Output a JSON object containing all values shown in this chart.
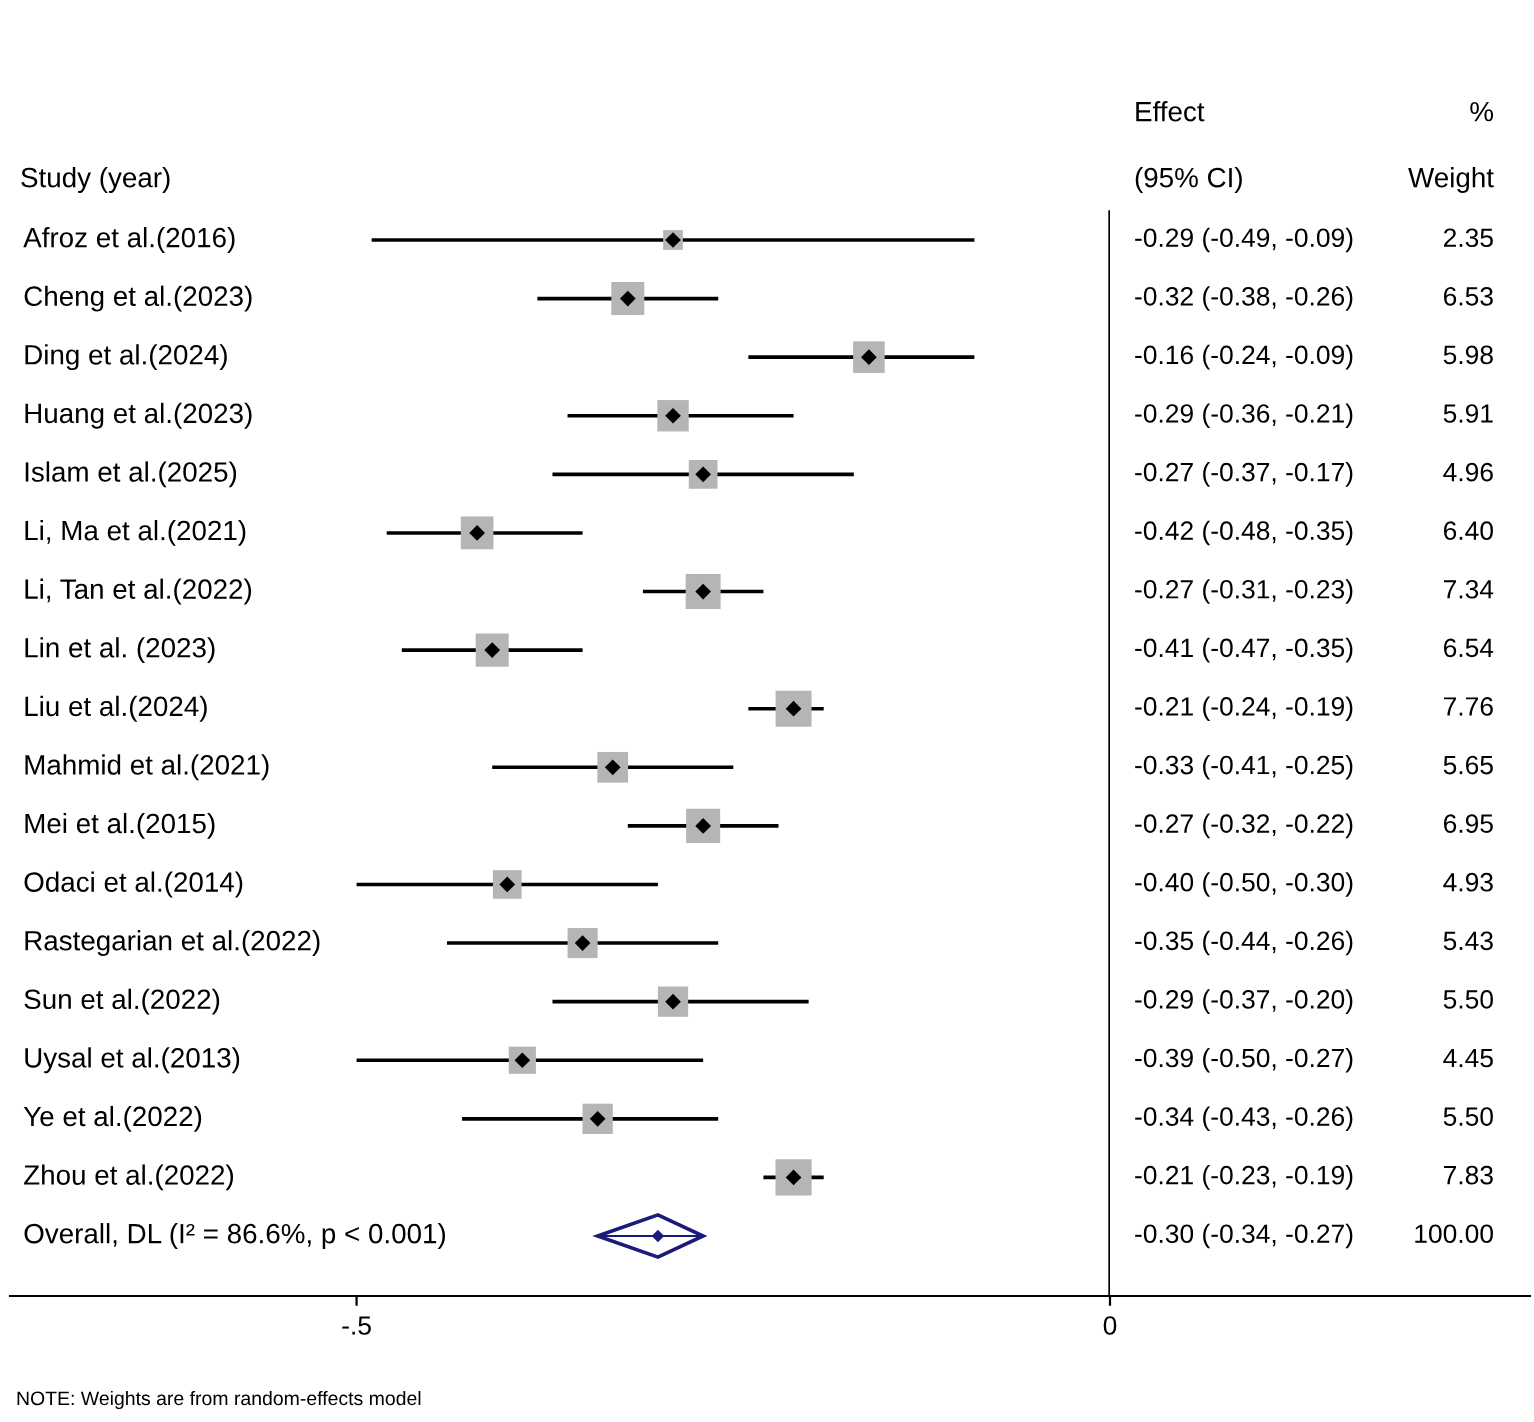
{
  "chart_data": {
    "type": "scatter",
    "orientation": "horizontal",
    "categories": [
      "Afroz et al.(2016)",
      "Cheng et al.(2023)",
      "Ding et al.(2024)",
      "Huang et al.(2023)",
      "Islam et al.(2025)",
      "Li, Ma et al.(2021)",
      "Li, Tan et al.(2022)",
      "Lin et al. (2023)",
      "Liu et al.(2024)",
      "Mahmid et al.(2021)",
      "Mei et al.(2015)",
      "Odaci et al.(2014)",
      "Rastegarian et al.(2022)",
      "Sun et al.(2022)",
      "Uysal et al.(2013)",
      "Ye et al.(2022)",
      "Zhou et al.(2022)",
      "Overall, DL (I² = 86.6%, p < 0.001)"
    ],
    "series": [
      {
        "type": "bubble",
        "color": "#b5b5b5",
        "marker": "square",
        "values": [
          -0.29,
          -0.32,
          -0.16,
          -0.29,
          -0.27,
          -0.42,
          -0.27,
          -0.41,
          -0.21,
          -0.33,
          -0.27,
          -0.4,
          -0.35,
          -0.29,
          -0.39,
          -0.34,
          -0.21,
          null
        ],
        "sizes": [
          2.35,
          6.53,
          5.98,
          5.91,
          4.96,
          6.4,
          7.34,
          6.54,
          7.76,
          5.65,
          6.95,
          4.93,
          5.43,
          5.5,
          4.45,
          5.5,
          7.83,
          null
        ],
        "value_labels": [
          "2.35",
          "6.53",
          "5.98",
          "5.91",
          "4.96",
          "6.40",
          "7.34",
          "6.54",
          "7.76",
          "5.65",
          "6.95",
          "4.93",
          "5.43",
          "5.50",
          "4.45",
          "5.50",
          "7.83",
          null
        ]
      },
      {
        "color": "#000000",
        "marker": "diamond",
        "values": [
          -0.29,
          -0.32,
          -0.16,
          -0.29,
          -0.27,
          -0.42,
          -0.27,
          -0.41,
          -0.21,
          -0.33,
          -0.27,
          -0.4,
          -0.35,
          -0.29,
          -0.39,
          -0.34,
          -0.21,
          null
        ],
        "errors": [
          [
            -0.49,
            -0.09
          ],
          [
            -0.38,
            -0.26
          ],
          [
            -0.24,
            -0.09
          ],
          [
            -0.36,
            -0.21
          ],
          [
            -0.37,
            -0.17
          ],
          [
            -0.48,
            -0.35
          ],
          [
            -0.31,
            -0.23
          ],
          [
            -0.47,
            -0.35
          ],
          [
            -0.24,
            -0.19
          ],
          [
            -0.41,
            -0.25
          ],
          [
            -0.32,
            -0.22
          ],
          [
            -0.5,
            -0.3
          ],
          [
            -0.44,
            -0.26
          ],
          [
            -0.37,
            -0.2
          ],
          [
            -0.5,
            -0.27
          ],
          [
            -0.43,
            -0.26
          ],
          [
            -0.23,
            -0.19
          ],
          null
        ],
        "value_labels": [
          "-0.29 (-0.49, -0.09)",
          "-0.32 (-0.38, -0.26)",
          "-0.16 (-0.24, -0.09)",
          "-0.29 (-0.36, -0.21)",
          "-0.27 (-0.37, -0.17)",
          "-0.42 (-0.48, -0.35)",
          "-0.27 (-0.31, -0.23)",
          "-0.41 (-0.47, -0.35)",
          "-0.21 (-0.24, -0.19)",
          "-0.33 (-0.41, -0.25)",
          "-0.27 (-0.32, -0.22)",
          "-0.40 (-0.50, -0.30)",
          "-0.35 (-0.44, -0.26)",
          "-0.29 (-0.37, -0.20)",
          "-0.39 (-0.50, -0.27)",
          "-0.34 (-0.43, -0.26)",
          "-0.21 (-0.23, -0.19)",
          null
        ]
      },
      {
        "color": "#1a1a7a",
        "marker": "diamond",
        "values": [
          null,
          null,
          null,
          null,
          null,
          null,
          null,
          null,
          null,
          null,
          null,
          null,
          null,
          null,
          null,
          null,
          null,
          -0.3
        ],
        "errors": [
          null,
          null,
          null,
          null,
          null,
          null,
          null,
          null,
          null,
          null,
          null,
          null,
          null,
          null,
          null,
          null,
          null,
          [
            -0.34,
            -0.27
          ]
        ]
      }
    ],
    "xlim": [
      -0.73,
      0
    ],
    "xticks": [
      {
        "value": -0.5,
        "label": "-.5"
      },
      0
    ],
    "ref_lines": [
      {
        "axis": "x",
        "value": 0,
        "color": "#000000"
      }
    ],
    "tick_labels": "x",
    "grid": false,
    "legend": false,
    "annotations": [
      "Study (year)",
      "Effect",
      "(95% CI)",
      "%",
      "Weight",
      "NOTE: Weights are from random-effects model",
      "100.00",
      "-0.30 (-0.34, -0.27)"
    ]
  }
}
